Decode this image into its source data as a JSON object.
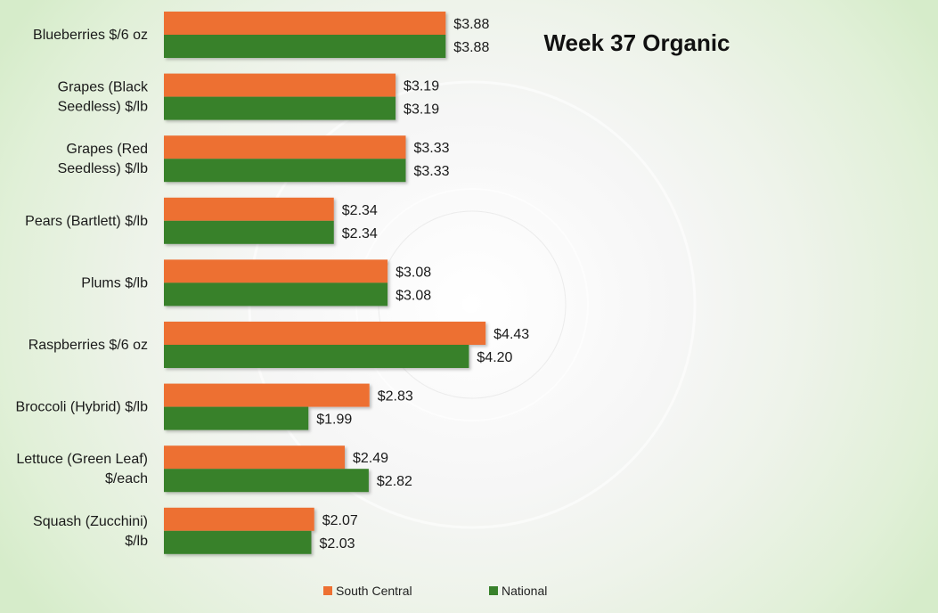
{
  "chart_data": {
    "type": "bar",
    "orientation": "horizontal",
    "title": "Week 37 Organic",
    "categories": [
      [
        "Blueberries $/6 oz"
      ],
      [
        "Grapes (Black",
        "Seedless) $/lb"
      ],
      [
        "Grapes (Red",
        "Seedless) $/lb"
      ],
      [
        "Pears (Bartlett) $/lb"
      ],
      [
        "Plums $/lb"
      ],
      [
        "Raspberries $/6 oz"
      ],
      [
        "Broccoli (Hybrid) $/lb"
      ],
      [
        "Lettuce (Green Leaf)",
        "$/each"
      ],
      [
        "Squash (Zucchini)",
        "$/lb"
      ]
    ],
    "series": [
      {
        "name": "South Central",
        "color": "#ED7032",
        "values": [
          3.88,
          3.19,
          3.33,
          2.34,
          3.08,
          4.43,
          2.83,
          2.49,
          2.07
        ],
        "labels": [
          "$3.88",
          "$3.19",
          "$3.33",
          "$2.34",
          "$3.08",
          "$4.43",
          "$2.83",
          "$2.49",
          "$2.07"
        ]
      },
      {
        "name": "National",
        "color": "#38812B",
        "values": [
          3.88,
          3.19,
          3.33,
          2.34,
          3.08,
          4.2,
          1.99,
          2.82,
          2.03
        ],
        "labels": [
          "$3.88",
          "$3.19",
          "$3.33",
          "$2.34",
          "$3.08",
          "$4.20",
          "$1.99",
          "$2.82",
          "$2.03"
        ]
      }
    ],
    "xlim": [
      0,
      10.5
    ],
    "grid": false,
    "legend_position": "bottom"
  }
}
